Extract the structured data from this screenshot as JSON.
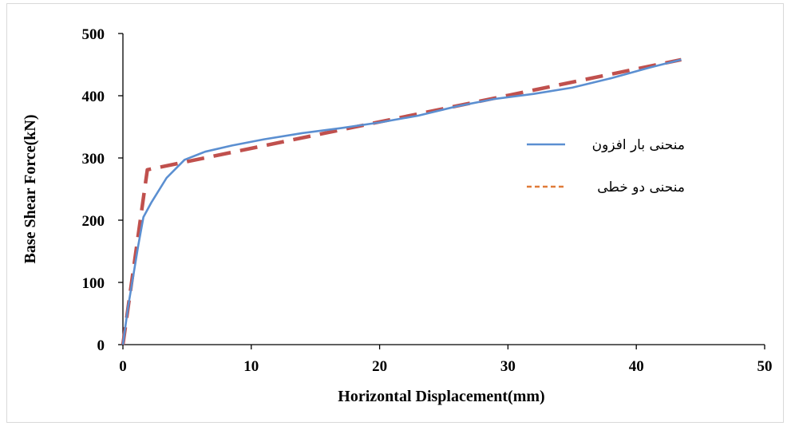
{
  "chart_data": {
    "type": "line",
    "xlabel": "Horizontal Displacement(mm)",
    "ylabel": "Base Shear Force(kN)",
    "xlim": [
      0,
      50
    ],
    "ylim": [
      0,
      500
    ],
    "xticks": [
      "0",
      "10",
      "20",
      "30",
      "40",
      "50"
    ],
    "yticks": [
      "0",
      "100",
      "200",
      "300",
      "400",
      "500"
    ],
    "grid": false,
    "legend_position": "right",
    "series": [
      {
        "name": "منحنی بار افزون",
        "color": "#5b8fd1",
        "style": "solid",
        "x": [
          0,
          0.4,
          0.8,
          1.2,
          1.6,
          2.2,
          3.4,
          4.8,
          6.4,
          8.5,
          11,
          14,
          17,
          20,
          23,
          26,
          29,
          32,
          35,
          38,
          41,
          43.5
        ],
        "y": [
          0,
          60,
          110,
          160,
          205,
          228,
          268,
          297,
          310,
          320,
          330,
          340,
          348,
          357,
          368,
          383,
          395,
          403,
          413,
          428,
          445,
          458
        ]
      },
      {
        "name": "منحنی دو خطی",
        "color": "#c0504d",
        "style": "dashed",
        "x": [
          0,
          1.9,
          43.5
        ],
        "y": [
          0,
          281,
          458
        ]
      }
    ]
  }
}
